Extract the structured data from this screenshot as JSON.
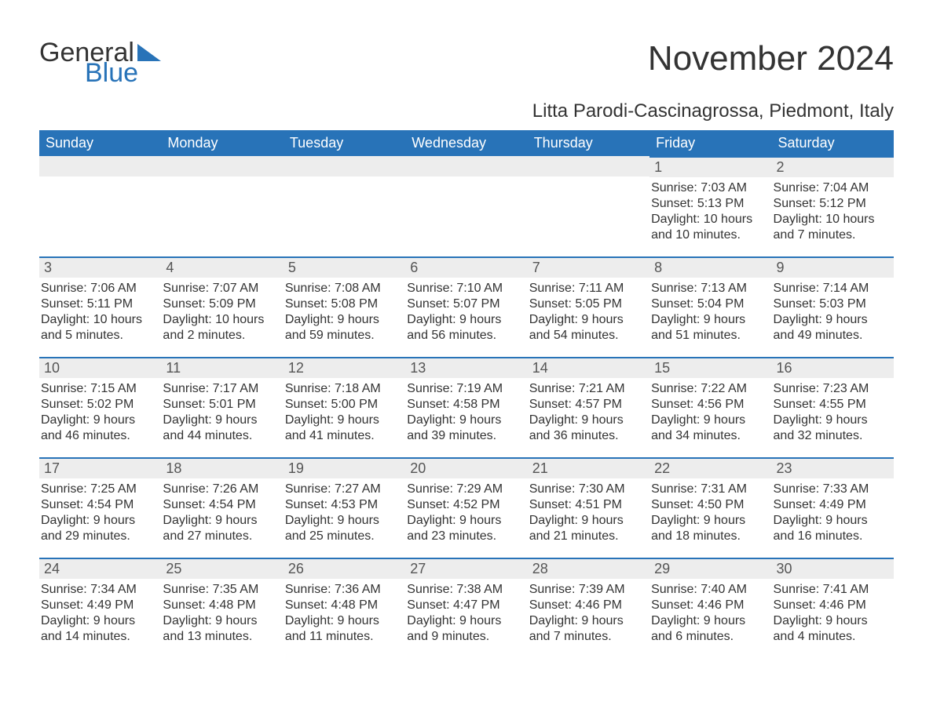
{
  "logo": {
    "text1": "General",
    "text2": "Blue",
    "tri_color": "#2873b8"
  },
  "title": "November 2024",
  "location": "Litta Parodi-Cascinagrossa, Piedmont, Italy",
  "colors": {
    "header_bg": "#2873b8",
    "row_stripe": "#ededed",
    "rule": "#2873b8",
    "text": "#333333"
  },
  "weekdays": [
    "Sunday",
    "Monday",
    "Tuesday",
    "Wednesday",
    "Thursday",
    "Friday",
    "Saturday"
  ],
  "weeks": [
    [
      null,
      null,
      null,
      null,
      null,
      {
        "n": "1",
        "sunrise": "Sunrise: 7:03 AM",
        "sunset": "Sunset: 5:13 PM",
        "day1": "Daylight: 10 hours",
        "day2": "and 10 minutes."
      },
      {
        "n": "2",
        "sunrise": "Sunrise: 7:04 AM",
        "sunset": "Sunset: 5:12 PM",
        "day1": "Daylight: 10 hours",
        "day2": "and 7 minutes."
      }
    ],
    [
      {
        "n": "3",
        "sunrise": "Sunrise: 7:06 AM",
        "sunset": "Sunset: 5:11 PM",
        "day1": "Daylight: 10 hours",
        "day2": "and 5 minutes."
      },
      {
        "n": "4",
        "sunrise": "Sunrise: 7:07 AM",
        "sunset": "Sunset: 5:09 PM",
        "day1": "Daylight: 10 hours",
        "day2": "and 2 minutes."
      },
      {
        "n": "5",
        "sunrise": "Sunrise: 7:08 AM",
        "sunset": "Sunset: 5:08 PM",
        "day1": "Daylight: 9 hours",
        "day2": "and 59 minutes."
      },
      {
        "n": "6",
        "sunrise": "Sunrise: 7:10 AM",
        "sunset": "Sunset: 5:07 PM",
        "day1": "Daylight: 9 hours",
        "day2": "and 56 minutes."
      },
      {
        "n": "7",
        "sunrise": "Sunrise: 7:11 AM",
        "sunset": "Sunset: 5:05 PM",
        "day1": "Daylight: 9 hours",
        "day2": "and 54 minutes."
      },
      {
        "n": "8",
        "sunrise": "Sunrise: 7:13 AM",
        "sunset": "Sunset: 5:04 PM",
        "day1": "Daylight: 9 hours",
        "day2": "and 51 minutes."
      },
      {
        "n": "9",
        "sunrise": "Sunrise: 7:14 AM",
        "sunset": "Sunset: 5:03 PM",
        "day1": "Daylight: 9 hours",
        "day2": "and 49 minutes."
      }
    ],
    [
      {
        "n": "10",
        "sunrise": "Sunrise: 7:15 AM",
        "sunset": "Sunset: 5:02 PM",
        "day1": "Daylight: 9 hours",
        "day2": "and 46 minutes."
      },
      {
        "n": "11",
        "sunrise": "Sunrise: 7:17 AM",
        "sunset": "Sunset: 5:01 PM",
        "day1": "Daylight: 9 hours",
        "day2": "and 44 minutes."
      },
      {
        "n": "12",
        "sunrise": "Sunrise: 7:18 AM",
        "sunset": "Sunset: 5:00 PM",
        "day1": "Daylight: 9 hours",
        "day2": "and 41 minutes."
      },
      {
        "n": "13",
        "sunrise": "Sunrise: 7:19 AM",
        "sunset": "Sunset: 4:58 PM",
        "day1": "Daylight: 9 hours",
        "day2": "and 39 minutes."
      },
      {
        "n": "14",
        "sunrise": "Sunrise: 7:21 AM",
        "sunset": "Sunset: 4:57 PM",
        "day1": "Daylight: 9 hours",
        "day2": "and 36 minutes."
      },
      {
        "n": "15",
        "sunrise": "Sunrise: 7:22 AM",
        "sunset": "Sunset: 4:56 PM",
        "day1": "Daylight: 9 hours",
        "day2": "and 34 minutes."
      },
      {
        "n": "16",
        "sunrise": "Sunrise: 7:23 AM",
        "sunset": "Sunset: 4:55 PM",
        "day1": "Daylight: 9 hours",
        "day2": "and 32 minutes."
      }
    ],
    [
      {
        "n": "17",
        "sunrise": "Sunrise: 7:25 AM",
        "sunset": "Sunset: 4:54 PM",
        "day1": "Daylight: 9 hours",
        "day2": "and 29 minutes."
      },
      {
        "n": "18",
        "sunrise": "Sunrise: 7:26 AM",
        "sunset": "Sunset: 4:54 PM",
        "day1": "Daylight: 9 hours",
        "day2": "and 27 minutes."
      },
      {
        "n": "19",
        "sunrise": "Sunrise: 7:27 AM",
        "sunset": "Sunset: 4:53 PM",
        "day1": "Daylight: 9 hours",
        "day2": "and 25 minutes."
      },
      {
        "n": "20",
        "sunrise": "Sunrise: 7:29 AM",
        "sunset": "Sunset: 4:52 PM",
        "day1": "Daylight: 9 hours",
        "day2": "and 23 minutes."
      },
      {
        "n": "21",
        "sunrise": "Sunrise: 7:30 AM",
        "sunset": "Sunset: 4:51 PM",
        "day1": "Daylight: 9 hours",
        "day2": "and 21 minutes."
      },
      {
        "n": "22",
        "sunrise": "Sunrise: 7:31 AM",
        "sunset": "Sunset: 4:50 PM",
        "day1": "Daylight: 9 hours",
        "day2": "and 18 minutes."
      },
      {
        "n": "23",
        "sunrise": "Sunrise: 7:33 AM",
        "sunset": "Sunset: 4:49 PM",
        "day1": "Daylight: 9 hours",
        "day2": "and 16 minutes."
      }
    ],
    [
      {
        "n": "24",
        "sunrise": "Sunrise: 7:34 AM",
        "sunset": "Sunset: 4:49 PM",
        "day1": "Daylight: 9 hours",
        "day2": "and 14 minutes."
      },
      {
        "n": "25",
        "sunrise": "Sunrise: 7:35 AM",
        "sunset": "Sunset: 4:48 PM",
        "day1": "Daylight: 9 hours",
        "day2": "and 13 minutes."
      },
      {
        "n": "26",
        "sunrise": "Sunrise: 7:36 AM",
        "sunset": "Sunset: 4:48 PM",
        "day1": "Daylight: 9 hours",
        "day2": "and 11 minutes."
      },
      {
        "n": "27",
        "sunrise": "Sunrise: 7:38 AM",
        "sunset": "Sunset: 4:47 PM",
        "day1": "Daylight: 9 hours",
        "day2": "and 9 minutes."
      },
      {
        "n": "28",
        "sunrise": "Sunrise: 7:39 AM",
        "sunset": "Sunset: 4:46 PM",
        "day1": "Daylight: 9 hours",
        "day2": "and 7 minutes."
      },
      {
        "n": "29",
        "sunrise": "Sunrise: 7:40 AM",
        "sunset": "Sunset: 4:46 PM",
        "day1": "Daylight: 9 hours",
        "day2": "and 6 minutes."
      },
      {
        "n": "30",
        "sunrise": "Sunrise: 7:41 AM",
        "sunset": "Sunset: 4:46 PM",
        "day1": "Daylight: 9 hours",
        "day2": "and 4 minutes."
      }
    ]
  ]
}
